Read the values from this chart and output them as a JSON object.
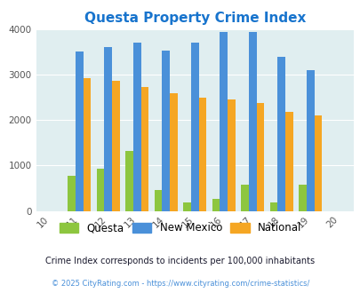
{
  "title": "Questa Property Crime Index",
  "title_color": "#1874CD",
  "years": [
    2010,
    2011,
    2012,
    2013,
    2014,
    2015,
    2016,
    2017,
    2018,
    2019,
    2020
  ],
  "data_years": [
    2011,
    2012,
    2013,
    2014,
    2015,
    2016,
    2017,
    2018,
    2019
  ],
  "questa": [
    780,
    930,
    1330,
    470,
    190,
    270,
    570,
    190,
    580
  ],
  "new_mexico": [
    3510,
    3600,
    3700,
    3540,
    3700,
    3950,
    3940,
    3400,
    3110
  ],
  "national": [
    2920,
    2870,
    2730,
    2590,
    2500,
    2460,
    2380,
    2180,
    2100
  ],
  "questa_color": "#8DC63F",
  "nm_color": "#4A90D9",
  "national_color": "#F5A623",
  "bg_color": "#E0EEF0",
  "ylim": [
    0,
    4000
  ],
  "yticks": [
    0,
    1000,
    2000,
    3000,
    4000
  ],
  "bar_width": 0.27,
  "footnote1": "Crime Index corresponds to incidents per 100,000 inhabitants",
  "footnote2": "© 2025 CityRating.com - https://www.cityrating.com/crime-statistics/",
  "footnote1_color": "#1a1a2e",
  "footnote2_color": "#4A90D9",
  "legend_labels": [
    "Questa",
    "New Mexico",
    "National"
  ],
  "tick_label_color": "#555555",
  "xtick_labels": [
    "10",
    "11",
    "12",
    "13",
    "14",
    "15",
    "16",
    "17",
    "18",
    "19",
    "20"
  ]
}
